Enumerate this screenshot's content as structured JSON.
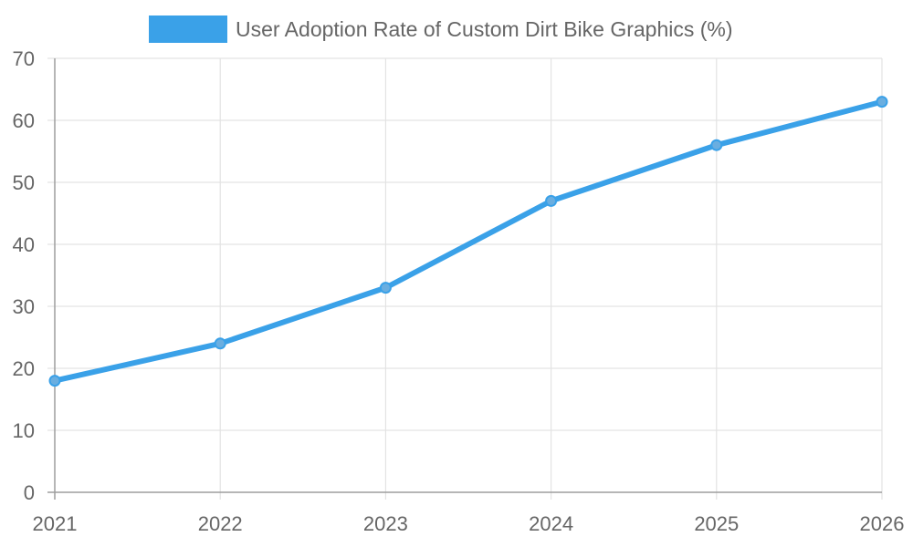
{
  "chart_data": {
    "type": "line",
    "x": [
      2021,
      2022,
      2023,
      2024,
      2025,
      2026
    ],
    "categories": [
      "2021",
      "2022",
      "2023",
      "2024",
      "2025",
      "2026"
    ],
    "series": [
      {
        "name": "User Adoption Rate of Custom Dirt Bike Graphics (%)",
        "values": [
          18,
          24,
          33,
          47,
          56,
          63
        ],
        "color": "#3aa1e8",
        "point_color": "#6aaee0"
      }
    ],
    "ylim": [
      0,
      70
    ],
    "yticks": [
      0,
      10,
      20,
      30,
      40,
      50,
      60,
      70
    ],
    "grid": true,
    "legend": "top-center"
  }
}
